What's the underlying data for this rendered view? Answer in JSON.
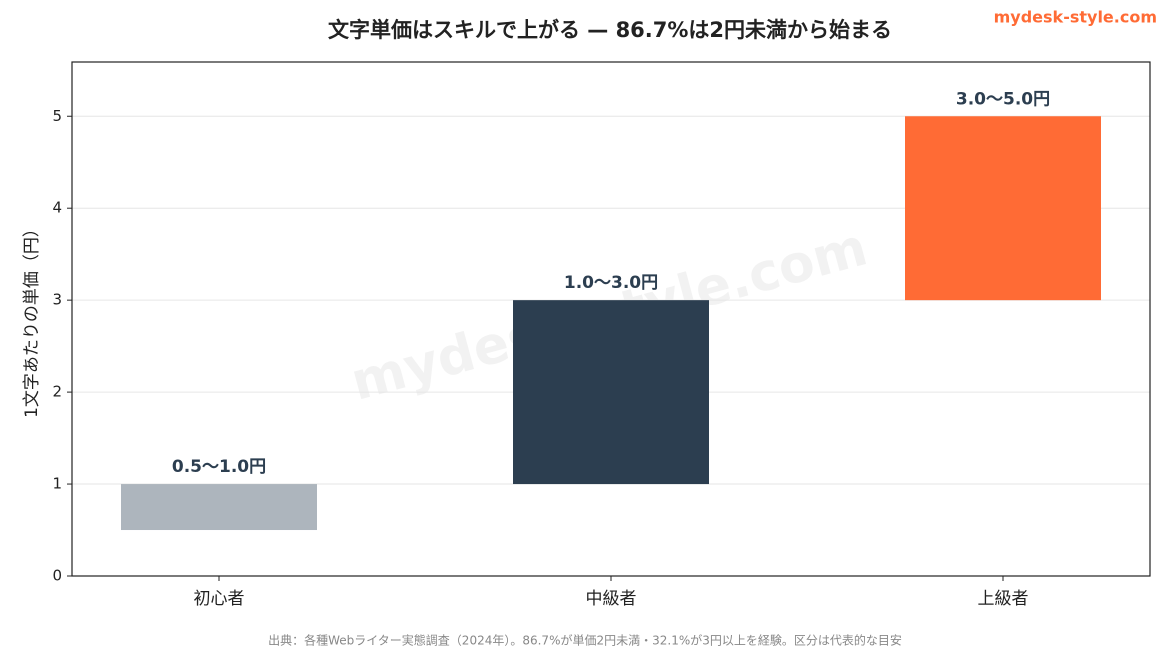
{
  "chart_data": {
    "type": "range_bar",
    "title": "文字単価はスキルで上がる — 86.7%は2円未満から始まる",
    "brand": "mydesk-style.com",
    "watermark": "mydesk-style.com",
    "ylabel": "1文字あたりの単価（円）",
    "source": "出典：各種Webライター実態調査（2024年）。86.7%が単価2円未満・32.1%が3円以上を経験。区分は代表的な目安",
    "categories": [
      "初心者",
      "中級者",
      "上級者"
    ],
    "low": [
      0.5,
      1.0,
      3.0
    ],
    "high": [
      1.0,
      3.0,
      5.0
    ],
    "value_labels": [
      "0.5〜1.0円",
      "1.0〜3.0円",
      "3.0〜5.0円"
    ],
    "colors": [
      "#adb5bd",
      "#2c3e50",
      "#ff6b35"
    ],
    "ylim": [
      0,
      5.59
    ],
    "yticks": [
      0,
      1,
      2,
      3,
      4,
      5
    ],
    "grid": true
  }
}
